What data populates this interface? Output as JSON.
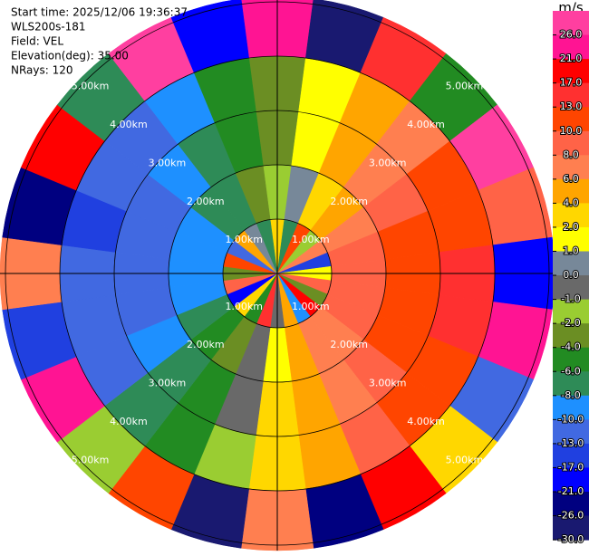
{
  "chart_data": {
    "type": "ppi",
    "info": [
      "Start time: 2025/12/06 19:36:37",
      "WLS200s-181",
      "Field: VEL",
      "Elevation(deg): 35.00",
      "NRays: 120"
    ],
    "unit": "m/s",
    "azimuths": [
      0,
      15,
      30,
      45,
      60,
      75,
      90,
      105,
      120,
      135,
      150,
      165,
      180,
      195,
      210,
      225,
      240,
      255,
      270,
      285,
      300,
      315,
      330,
      345
    ],
    "range_bins_km": [
      0,
      1,
      2,
      3,
      4,
      5.1
    ],
    "values": [
      [
        3,
        -8,
        12,
        -2,
        6,
        -15,
        1,
        9,
        -4,
        18,
        -10,
        5,
        -1,
        14,
        -6,
        2,
        -20,
        8,
        -3,
        11,
        -12,
        4,
        0,
        -7
      ],
      [
        -1.7,
        0.8,
        3.3,
        5.5,
        7.4,
        8.7,
        9.4,
        9.6,
        9.0,
        7.8,
        6.2,
        4.0,
        1.7,
        -0.8,
        -3.3,
        -5.5,
        -7.4,
        -8.7,
        -9.4,
        -9.6,
        -9.0,
        -7.8,
        -6.2,
        -4.0
      ],
      [
        -2.1,
        1.0,
        4.1,
        6.9,
        9.2,
        10.9,
        11.8,
        12.0,
        11.3,
        9.8,
        7.7,
        5.0,
        2.1,
        -1.0,
        -4.1,
        -6.9,
        -9.2,
        -10.9,
        -11.8,
        -12.0,
        -11.3,
        -9.8,
        -7.7,
        -5.0
      ],
      [
        -2.3,
        1.1,
        4.5,
        7.6,
        10.1,
        12.0,
        13.0,
        13.2,
        12.4,
        10.8,
        8.5,
        5.5,
        2.3,
        -1.1,
        -4.5,
        -7.6,
        -10.1,
        -12.0,
        -13.0,
        -13.2,
        -12.4,
        -10.8,
        -8.5,
        -5.5
      ],
      [
        22,
        -27,
        15,
        -5,
        28,
        9,
        -18,
        24,
        -11,
        3,
        19,
        -23,
        7,
        -29,
        12,
        -2,
        25,
        -14,
        6,
        -24,
        17,
        -8,
        27,
        -19
      ]
    ],
    "rings": [
      {
        "value": 1,
        "label": "1.00km"
      },
      {
        "value": 2,
        "label": "2.00km"
      },
      {
        "value": 3,
        "label": "3.00km"
      },
      {
        "value": 4,
        "label": "4.00km"
      },
      {
        "value": 5,
        "label": "5.00km"
      }
    ],
    "levels": [
      {
        "value": 26,
        "label": "26.0"
      },
      {
        "value": 21,
        "label": "21.0"
      },
      {
        "value": 17,
        "label": "17.0"
      },
      {
        "value": 13,
        "label": "13.0"
      },
      {
        "value": 10,
        "label": "10.0"
      },
      {
        "value": 8,
        "label": "8.0"
      },
      {
        "value": 6,
        "label": "6.0"
      },
      {
        "value": 4,
        "label": "4.0"
      },
      {
        "value": 2,
        "label": "2.0"
      },
      {
        "value": 1,
        "label": "1.0"
      },
      {
        "value": 0,
        "label": "0.0"
      },
      {
        "value": -1,
        "label": "-1.0"
      },
      {
        "value": -2,
        "label": "-2.0"
      },
      {
        "value": -4,
        "label": "-4.0"
      },
      {
        "value": -6,
        "label": "-6.0"
      },
      {
        "value": -8,
        "label": "-8.0"
      },
      {
        "value": -10,
        "label": "-10.0"
      },
      {
        "value": -13,
        "label": "-13.0"
      },
      {
        "value": -17,
        "label": "-17.0"
      },
      {
        "value": -21,
        "label": "-21.0"
      },
      {
        "value": -26,
        "label": "-26.0"
      },
      {
        "value": -30,
        "label": "-30.0"
      }
    ],
    "colors": [
      "#ff3fa0",
      "#ff1493",
      "#ff0000",
      "#ff3030",
      "#ff4500",
      "#ff6347",
      "#ff7f50",
      "#ffa500",
      "#ffd700",
      "#ffff00",
      "#778899",
      "#696969",
      "#9acd32",
      "#6b8e23",
      "#228b22",
      "#2e8b57",
      "#1e90ff",
      "#4169e1",
      "#2040e0",
      "#0000ff",
      "#000080",
      "#191970"
    ]
  }
}
